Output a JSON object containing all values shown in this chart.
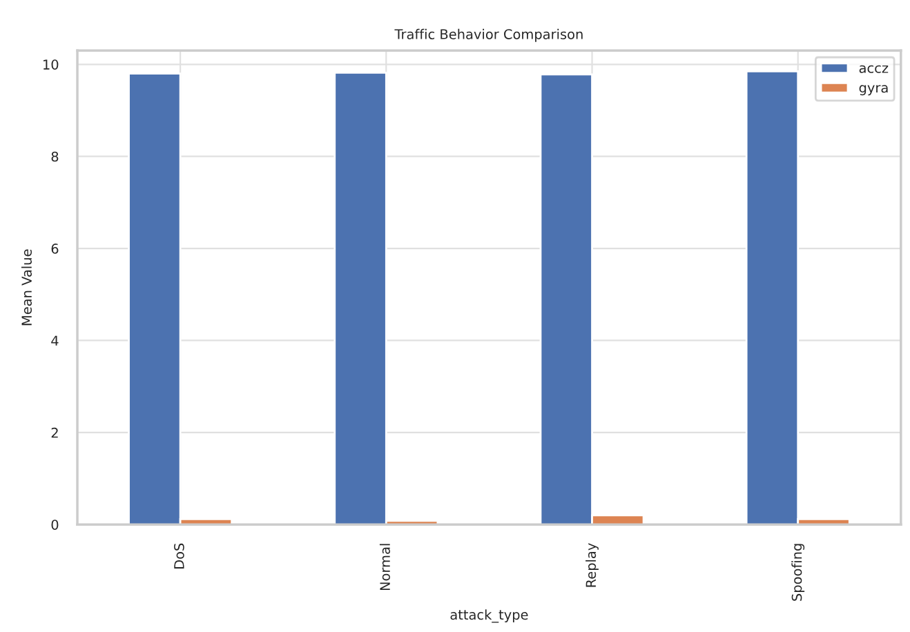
{
  "chart_data": {
    "type": "bar",
    "title": "Traffic Behavior Comparison",
    "xlabel": "attack_type",
    "ylabel": "Mean Value",
    "categories": [
      "DoS",
      "Normal",
      "Replay",
      "Spoofing"
    ],
    "series": [
      {
        "name": "accz",
        "color": "#4c72b0",
        "values": [
          9.8,
          9.82,
          9.78,
          9.85
        ]
      },
      {
        "name": "gyra",
        "color": "#dd8452",
        "values": [
          0.12,
          0.08,
          0.2,
          0.12
        ]
      }
    ],
    "ylim": [
      0,
      10.3
    ],
    "yticks": [
      0,
      2,
      4,
      6,
      8,
      10
    ],
    "grid": true,
    "legend": "top right"
  }
}
